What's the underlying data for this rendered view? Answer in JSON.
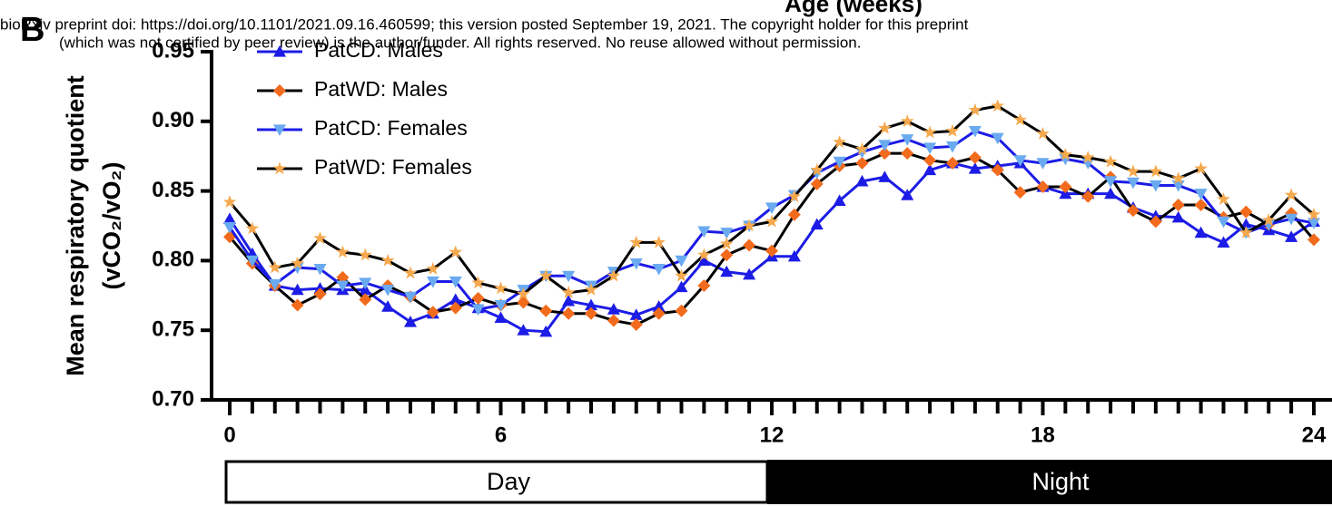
{
  "header": {
    "line1": "bioRxiv preprint doi: https://doi.org/10.1101/2021.09.16.460599; this version posted September 19, 2021. The copyright holder for this preprint",
    "line2": "(which was not certified by peer review) is the author/funder. All rights reserved. No reuse allowed without permission."
  },
  "chart_data": {
    "type": "line",
    "panel": "B",
    "title": "Age (weeks)",
    "ylabel": "Mean respiratory quotient",
    "ylabel2": "(vCO₂/vO₂)",
    "x": [
      0,
      0.5,
      1,
      1.5,
      2,
      2.5,
      3,
      3.5,
      4,
      4.5,
      5,
      5.5,
      6,
      6.5,
      7,
      7.5,
      8,
      8.5,
      9,
      9.5,
      10,
      10.5,
      11,
      11.5,
      12,
      12.5,
      13,
      13.5,
      14,
      14.5,
      15,
      15.5,
      16,
      16.5,
      17,
      17.5,
      18,
      18.5,
      19,
      19.5,
      20,
      20.5,
      21,
      21.5,
      22,
      22.5,
      23,
      23.5,
      24
    ],
    "xlim": [
      0,
      24
    ],
    "xticks": [
      0,
      6,
      12,
      18,
      24
    ],
    "ylim": [
      0.7,
      0.95
    ],
    "yticks": [
      {
        "value": 0.7,
        "label": "0.70"
      },
      0.75,
      {
        "value": 0.8,
        "label": "0.80"
      },
      0.85,
      {
        "value": 0.9,
        "label": "0.90"
      },
      0.95
    ],
    "phases": [
      "Day",
      "Night"
    ],
    "series": [
      {
        "name": "PatCD: Males",
        "color": "#1c1ce6",
        "marker_color": "#1c1ce6",
        "marker": "triangle-up",
        "values": [
          0.83,
          0.805,
          0.782,
          0.779,
          0.78,
          0.779,
          0.779,
          0.767,
          0.756,
          0.762,
          0.772,
          0.766,
          0.759,
          0.75,
          0.749,
          0.771,
          0.768,
          0.765,
          0.761,
          0.767,
          0.781,
          0.8,
          0.792,
          0.79,
          0.803,
          0.803,
          0.826,
          0.843,
          0.857,
          0.86,
          0.847,
          0.865,
          0.87,
          0.866,
          0.868,
          0.87,
          0.853,
          0.848,
          0.848,
          0.848,
          0.838,
          0.832,
          0.831,
          0.82,
          0.813,
          0.826,
          0.822,
          0.817,
          0.828
        ]
      },
      {
        "name": "PatWD: Males",
        "color": "#000000",
        "marker_color": "#f26b1d",
        "marker": "diamond",
        "values": [
          0.817,
          0.798,
          0.782,
          0.768,
          0.776,
          0.788,
          0.772,
          0.782,
          0.774,
          0.763,
          0.766,
          0.773,
          0.768,
          0.77,
          0.764,
          0.762,
          0.762,
          0.757,
          0.754,
          0.762,
          0.764,
          0.782,
          0.804,
          0.811,
          0.807,
          0.833,
          0.855,
          0.868,
          0.87,
          0.877,
          0.877,
          0.872,
          0.87,
          0.874,
          0.865,
          0.849,
          0.853,
          0.853,
          0.846,
          0.86,
          0.836,
          0.828,
          0.84,
          0.84,
          0.831,
          0.835,
          0.826,
          0.834,
          0.815
        ]
      },
      {
        "name": "PatCD: Females",
        "color": "#1c1ce6",
        "marker_color": "#6aaaf0",
        "marker": "triangle-down",
        "values": [
          0.824,
          0.8,
          0.783,
          0.795,
          0.794,
          0.782,
          0.784,
          0.779,
          0.774,
          0.785,
          0.785,
          0.765,
          0.768,
          0.779,
          0.789,
          0.789,
          0.782,
          0.792,
          0.798,
          0.794,
          0.8,
          0.821,
          0.82,
          0.825,
          0.838,
          0.847,
          0.863,
          0.871,
          0.878,
          0.883,
          0.887,
          0.881,
          0.882,
          0.893,
          0.888,
          0.872,
          0.87,
          0.873,
          0.87,
          0.857,
          0.856,
          0.854,
          0.854,
          0.848,
          0.828,
          0.82,
          0.826,
          0.83,
          0.827
        ]
      },
      {
        "name": "PatWD: Females",
        "color": "#000000",
        "marker_color": "#f5a94e",
        "marker": "star",
        "values": [
          0.842,
          0.823,
          0.795,
          0.798,
          0.816,
          0.806,
          0.804,
          0.8,
          0.791,
          0.794,
          0.806,
          0.784,
          0.78,
          0.776,
          0.789,
          0.777,
          0.779,
          0.789,
          0.813,
          0.813,
          0.789,
          0.804,
          0.812,
          0.825,
          0.828,
          0.846,
          0.865,
          0.885,
          0.88,
          0.895,
          0.9,
          0.892,
          0.893,
          0.908,
          0.911,
          0.901,
          0.891,
          0.876,
          0.874,
          0.871,
          0.864,
          0.864,
          0.859,
          0.866,
          0.844,
          0.82,
          0.829,
          0.847,
          0.833
        ]
      }
    ]
  }
}
